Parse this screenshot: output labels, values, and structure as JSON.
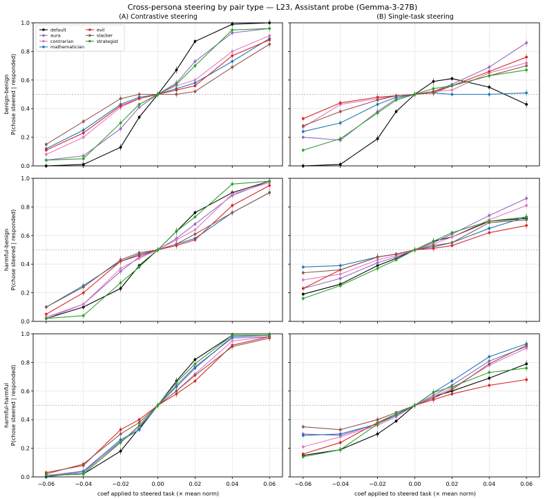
{
  "figure": {
    "title": "Cross-persona steering by pair type — L23, Assistant probe (Gemma-3-27B)",
    "col_titles": [
      "(A) Contrastive steering",
      "(B) Single-task steering"
    ],
    "row_labels": [
      "benign-benign",
      "harmful-benign",
      "harmful-harmful"
    ],
    "ylabel": "P(chose steered | responded)",
    "xlabel": "coef applied to steered task (× mean norm)"
  },
  "chart_data": {
    "type": "line",
    "x": [
      -0.06,
      -0.04,
      -0.02,
      -0.01,
      0.0,
      0.01,
      0.02,
      0.04,
      0.06
    ],
    "x_ticks": [
      -0.06,
      -0.04,
      -0.02,
      0.0,
      0.02,
      0.04,
      0.06
    ],
    "x_tick_labels": [
      "−0.06",
      "−0.04",
      "−0.02",
      "0.00",
      "0.02",
      "0.04",
      "0.06"
    ],
    "y_ticks": [
      0.0,
      0.2,
      0.4,
      0.6,
      0.8,
      1.0
    ],
    "y_tick_labels": [
      "0.0",
      "0.2",
      "0.4",
      "0.6",
      "0.8",
      "1.0"
    ],
    "xlim": [
      -0.067,
      0.067
    ],
    "ylim": [
      0,
      1
    ],
    "reference_line": 0.5,
    "grid": true,
    "legend_location": "upper-left of first panel",
    "personas": [
      {
        "name": "default",
        "color": "#000000"
      },
      {
        "name": "aura",
        "color": "#9467bd"
      },
      {
        "name": "contrarian",
        "color": "#e377c2"
      },
      {
        "name": "mathematician",
        "color": "#1f77b4"
      },
      {
        "name": "evil",
        "color": "#d62728"
      },
      {
        "name": "slacker",
        "color": "#8c564b"
      },
      {
        "name": "strategist",
        "color": "#2ca02c"
      }
    ],
    "panels": [
      {
        "id": "benign-benign-contrastive",
        "series": [
          {
            "name": "default",
            "values": [
              0.0,
              0.01,
              0.13,
              0.34,
              0.5,
              0.67,
              0.87,
              0.99,
              1.0
            ]
          },
          {
            "name": "aura",
            "values": [
              0.04,
              0.07,
              0.26,
              0.41,
              0.5,
              0.58,
              0.73,
              0.93,
              0.96
            ]
          },
          {
            "name": "contrarian",
            "values": [
              0.08,
              0.2,
              0.41,
              0.47,
              0.5,
              0.56,
              0.6,
              0.8,
              0.91
            ]
          },
          {
            "name": "mathematician",
            "values": [
              0.12,
              0.25,
              0.43,
              0.48,
              0.5,
              0.54,
              0.58,
              0.73,
              0.89
            ]
          },
          {
            "name": "evil",
            "values": [
              0.11,
              0.23,
              0.42,
              0.47,
              0.5,
              0.53,
              0.56,
              0.77,
              0.88
            ]
          },
          {
            "name": "slacker",
            "values": [
              0.15,
              0.31,
              0.47,
              0.5,
              0.5,
              0.5,
              0.52,
              0.69,
              0.85
            ]
          },
          {
            "name": "strategist",
            "values": [
              0.04,
              0.05,
              0.3,
              0.43,
              0.5,
              0.57,
              0.7,
              0.95,
              0.96
            ]
          }
        ]
      },
      {
        "id": "benign-benign-single",
        "series": [
          {
            "name": "default",
            "values": [
              0.0,
              0.01,
              0.19,
              0.38,
              0.5,
              0.59,
              0.61,
              0.55,
              0.43
            ]
          },
          {
            "name": "aura",
            "values": [
              0.2,
              0.18,
              0.38,
              0.47,
              0.5,
              0.52,
              0.57,
              0.69,
              0.86
            ]
          },
          {
            "name": "contrarian",
            "values": [
              0.27,
              0.43,
              0.47,
              0.49,
              0.5,
              0.52,
              0.53,
              0.65,
              0.72
            ]
          },
          {
            "name": "mathematician",
            "values": [
              0.24,
              0.3,
              0.43,
              0.48,
              0.5,
              0.51,
              0.5,
              0.5,
              0.51
            ]
          },
          {
            "name": "evil",
            "values": [
              0.33,
              0.44,
              0.48,
              0.49,
              0.5,
              0.52,
              0.56,
              0.66,
              0.76
            ]
          },
          {
            "name": "slacker",
            "values": [
              0.28,
              0.38,
              0.46,
              0.49,
              0.5,
              0.51,
              0.56,
              0.63,
              0.7
            ]
          },
          {
            "name": "strategist",
            "values": [
              0.11,
              0.19,
              0.37,
              0.46,
              0.5,
              0.54,
              0.56,
              0.63,
              0.67
            ]
          }
        ]
      },
      {
        "id": "harmful-benign-contrastive",
        "series": [
          {
            "name": "default",
            "values": [
              0.02,
              0.1,
              0.23,
              0.39,
              0.5,
              0.63,
              0.76,
              0.9,
              0.98
            ]
          },
          {
            "name": "aura",
            "values": [
              0.02,
              0.12,
              0.35,
              0.45,
              0.5,
              0.58,
              0.68,
              0.88,
              0.98
            ]
          },
          {
            "name": "contrarian",
            "values": [
              0.03,
              0.12,
              0.37,
              0.44,
              0.5,
              0.57,
              0.64,
              0.89,
              0.97
            ]
          },
          {
            "name": "mathematician",
            "values": [
              0.1,
              0.25,
              0.42,
              0.47,
              0.5,
              0.54,
              0.58,
              0.76,
              0.9
            ]
          },
          {
            "name": "evil",
            "values": [
              0.05,
              0.2,
              0.42,
              0.46,
              0.5,
              0.53,
              0.57,
              0.81,
              0.95
            ]
          },
          {
            "name": "slacker",
            "values": [
              0.1,
              0.24,
              0.43,
              0.48,
              0.5,
              0.54,
              0.61,
              0.76,
              0.9
            ]
          },
          {
            "name": "strategist",
            "values": [
              0.02,
              0.04,
              0.27,
              0.38,
              0.5,
              0.63,
              0.73,
              0.96,
              0.98
            ]
          }
        ]
      },
      {
        "id": "harmful-benign-single",
        "series": [
          {
            "name": "default",
            "values": [
              0.19,
              0.26,
              0.39,
              0.44,
              0.5,
              0.56,
              0.59,
              0.7,
              0.72
            ]
          },
          {
            "name": "aura",
            "values": [
              0.23,
              0.3,
              0.41,
              0.45,
              0.5,
              0.55,
              0.61,
              0.74,
              0.86
            ]
          },
          {
            "name": "contrarian",
            "values": [
              0.29,
              0.33,
              0.43,
              0.46,
              0.5,
              0.54,
              0.59,
              0.71,
              0.81
            ]
          },
          {
            "name": "mathematician",
            "values": [
              0.38,
              0.39,
              0.45,
              0.47,
              0.5,
              0.52,
              0.55,
              0.65,
              0.73
            ]
          },
          {
            "name": "evil",
            "values": [
              0.23,
              0.36,
              0.45,
              0.47,
              0.5,
              0.51,
              0.53,
              0.62,
              0.67
            ]
          },
          {
            "name": "slacker",
            "values": [
              0.34,
              0.36,
              0.45,
              0.47,
              0.5,
              0.53,
              0.55,
              0.69,
              0.71
            ]
          },
          {
            "name": "strategist",
            "values": [
              0.16,
              0.25,
              0.37,
              0.43,
              0.5,
              0.56,
              0.62,
              0.7,
              0.73
            ]
          }
        ]
      },
      {
        "id": "harmful-harmful-contrastive",
        "series": [
          {
            "name": "default",
            "values": [
              0.01,
              0.02,
              0.18,
              0.34,
              0.5,
              0.67,
              0.82,
              0.99,
              0.99
            ]
          },
          {
            "name": "aura",
            "values": [
              0.0,
              0.03,
              0.25,
              0.33,
              0.5,
              0.64,
              0.77,
              0.97,
              0.98
            ]
          },
          {
            "name": "contrarian",
            "values": [
              0.01,
              0.04,
              0.24,
              0.35,
              0.5,
              0.6,
              0.72,
              0.95,
              0.98
            ]
          },
          {
            "name": "mathematician",
            "values": [
              0.0,
              0.04,
              0.26,
              0.33,
              0.5,
              0.63,
              0.76,
              0.98,
              0.99
            ]
          },
          {
            "name": "evil",
            "values": [
              0.03,
              0.08,
              0.33,
              0.4,
              0.5,
              0.58,
              0.67,
              0.92,
              0.98
            ]
          },
          {
            "name": "slacker",
            "values": [
              0.02,
              0.09,
              0.3,
              0.38,
              0.5,
              0.6,
              0.71,
              0.91,
              0.97
            ]
          },
          {
            "name": "strategist",
            "values": [
              0.01,
              0.02,
              0.24,
              0.36,
              0.5,
              0.66,
              0.79,
              0.99,
              0.99
            ]
          }
        ]
      },
      {
        "id": "harmful-harmful-single",
        "series": [
          {
            "name": "default",
            "values": [
              0.15,
              0.19,
              0.3,
              0.39,
              0.5,
              0.56,
              0.6,
              0.69,
              0.79
            ]
          },
          {
            "name": "aura",
            "values": [
              0.3,
              0.29,
              0.37,
              0.43,
              0.5,
              0.57,
              0.64,
              0.81,
              0.91
            ]
          },
          {
            "name": "contrarian",
            "values": [
              0.21,
              0.28,
              0.36,
              0.42,
              0.5,
              0.56,
              0.62,
              0.78,
              0.9
            ]
          },
          {
            "name": "mathematician",
            "values": [
              0.29,
              0.3,
              0.37,
              0.43,
              0.5,
              0.59,
              0.67,
              0.84,
              0.93
            ]
          },
          {
            "name": "evil",
            "values": [
              0.16,
              0.24,
              0.38,
              0.44,
              0.5,
              0.54,
              0.58,
              0.64,
              0.68
            ]
          },
          {
            "name": "slacker",
            "values": [
              0.35,
              0.33,
              0.4,
              0.45,
              0.5,
              0.55,
              0.61,
              0.79,
              0.92
            ]
          },
          {
            "name": "strategist",
            "values": [
              0.14,
              0.19,
              0.37,
              0.44,
              0.5,
              0.59,
              0.63,
              0.73,
              0.76
            ]
          }
        ]
      }
    ]
  }
}
